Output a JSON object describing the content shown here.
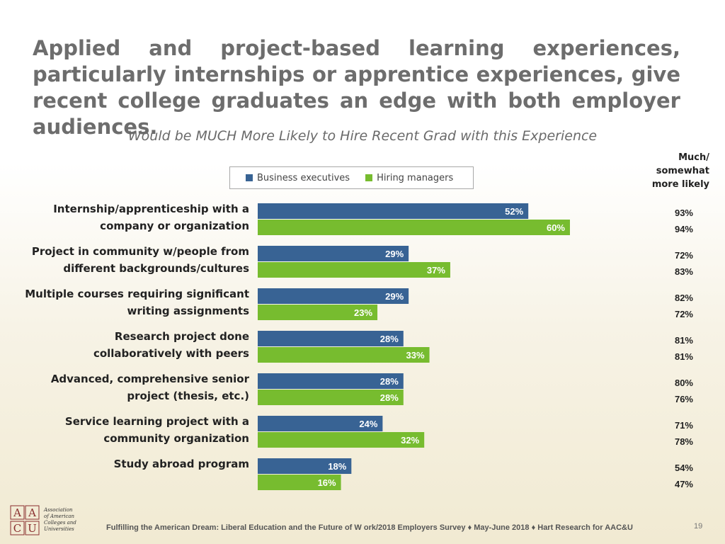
{
  "slide": {
    "title": "Applied and project-based learning experiences, particularly internships or apprentice experiences, give recent college graduates an edge with both employer audiences.",
    "footer": "Fulfilling the American Dream: Liberal Education and the Future of W ork/2018 Employers Survey ♦ May-June  2018 ♦ Hart Research for AAC&U",
    "page_number": "19",
    "logo": {
      "letters": [
        "A",
        "A",
        "C",
        "U"
      ],
      "text_lines": [
        "Association",
        "of American",
        "Colleges and",
        "Universities"
      ]
    }
  },
  "colors": {
    "business": "#386394",
    "hiring": "#77bc2f",
    "title": "#6d6d6d"
  },
  "chart_data": {
    "type": "bar",
    "orientation": "horizontal",
    "title": "Would be MUCH More Likely to Hire Recent Grad with this Experience",
    "side_header": [
      "Much/",
      "somewhat",
      "more likely"
    ],
    "legend_position": "top",
    "categories": [
      [
        "Internship/apprenticeship with a",
        "company or organization"
      ],
      [
        "Project in community w/people from",
        "different backgrounds/cultures"
      ],
      [
        "Multiple courses requiring significant",
        "writing assignments"
      ],
      [
        "Research project done",
        "collaboratively with peers"
      ],
      [
        "Advanced, comprehensive senior",
        "project (thesis, etc.)"
      ],
      [
        "Service learning project with a",
        "community organization"
      ],
      [
        "Study abroad program"
      ]
    ],
    "series": [
      {
        "name": "Business executives",
        "values": [
          52,
          29,
          29,
          28,
          28,
          24,
          18
        ],
        "labels": [
          "52%",
          "29%",
          "29%",
          "28%",
          "28%",
          "24%",
          "18%"
        ],
        "side_values": [
          "93%",
          "72%",
          "82%",
          "81%",
          "80%",
          "71%",
          "54%"
        ]
      },
      {
        "name": "Hiring managers",
        "values": [
          60,
          37,
          23,
          33,
          28,
          32,
          16
        ],
        "labels": [
          "60%",
          "37%",
          "23%",
          "33%",
          "28%",
          "32%",
          "16%"
        ],
        "side_values": [
          "94%",
          "83%",
          "72%",
          "81%",
          "76%",
          "78%",
          "47%"
        ]
      }
    ],
    "xlim": [
      0,
      100
    ]
  }
}
